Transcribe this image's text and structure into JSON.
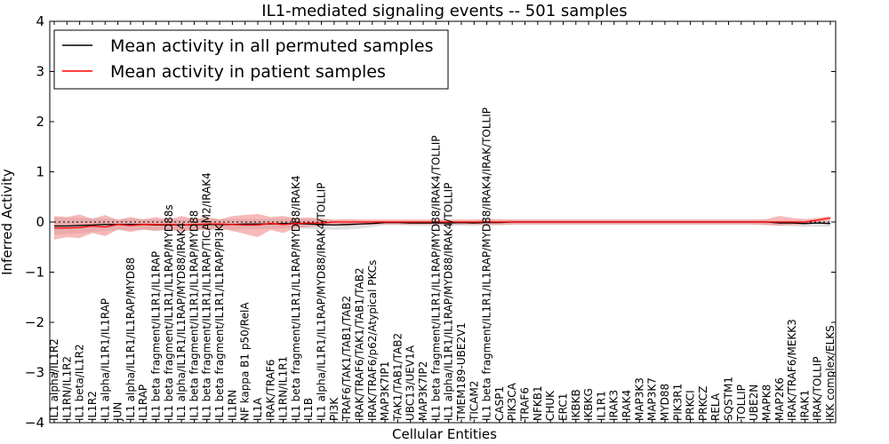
{
  "chart_data": {
    "type": "line",
    "title": "IL1-mediated signaling events -- 501 samples",
    "xlabel": "Cellular Entities",
    "ylabel": "Inferred Activity",
    "ylim": [
      -4,
      4
    ],
    "yticks": [
      -4,
      -3,
      -2,
      -1,
      0,
      1,
      2,
      3,
      4
    ],
    "ytick_labels": [
      "−4",
      "−3",
      "−2",
      "−1",
      "0",
      "1",
      "2",
      "3",
      "4"
    ],
    "legend_position": "top-left",
    "categories": [
      "IL1 alpha/IL1R2",
      "IL1RN/IL1R2",
      "IL1 beta/IL1R2",
      "IL1R2",
      "IL1 alpha/IL1R1/IL1RAP",
      "JUN",
      "IL1 alpha/IL1R1/IL1RAP/MYD88",
      "IL1RAP",
      "IL1 beta fragment/IL1R1/IL1RAP",
      "IL1 beta fragment/IL1R1/IL1RAP/MYD88s",
      "IL1 alpha/IL1R1/IL1RAP/MYD88/IRAK4",
      "IL1 beta fragment/IL1R1/IL1RAP/MYD88",
      "IL1 beta fragment/IL1R1/IL1RAP/TICAM2/IRAK4",
      "IL1 beta fragment/IL1R1/IL1RAP/PI3K",
      "IL1RN",
      "NF kappa B1 p50/RelA",
      "IL1A",
      "IRAK/TRAF6",
      "IL1RN/IL1R1",
      "IL1 beta fragment/IL1R1/IL1RAP/MYD88/IRAK4",
      "IL1B",
      "IL1 alpha/IL1R1/IL1RAP/MYD88/IRAK4/TOLLIP",
      "PI3K",
      "TRAF6/TAK1/TAB1/TAB2",
      "IRAK/TRAF6/TAK1/TAB1/TAB2",
      "IRAK/TRAF6/p62/Atypical PKCs",
      "MAP3K7IP1",
      "TAK1/TAB1/TAB2",
      "UBC13/UEV1A",
      "MAP3K7IP2",
      "IL1 beta fragment/IL1R1/IL1RAP/MYD88/IRAK4/TOLLIP",
      "IL1 alpha/IL1R1/IL1RAP/MYD88/IRAK4/TOLLIP",
      "TMEM189-UBE2V1",
      "TICAM2",
      "IL1 beta fragment/IL1R1/IL1RAP/MYD88/IRAK4/IRAK/TOLLIP",
      "CASP1",
      "PIK3CA",
      "TRAF6",
      "NFKB1",
      "CHUK",
      "ERC1",
      "IKBKB",
      "IKBKG",
      "IL1R1",
      "IRAK3",
      "IRAK4",
      "MAP3K3",
      "MAP3K7",
      "MYD88",
      "PIK3R1",
      "PRKCI",
      "PRKCZ",
      "RELA",
      "SQSTM1",
      "TOLLIP",
      "UBE2N",
      "MAPK8",
      "MAP2K6",
      "IRAK/TRAF6/MEKK3",
      "IRAK1",
      "IRAK/TOLLIP",
      "IKK complex/ELKS"
    ],
    "series": [
      {
        "name": "Mean activity in all permuted samples",
        "color": "#000000",
        "band_color": "#bbbbbb",
        "values": [
          -0.08,
          -0.08,
          -0.07,
          -0.06,
          -0.05,
          -0.05,
          -0.05,
          -0.05,
          -0.06,
          -0.06,
          -0.06,
          -0.06,
          -0.05,
          -0.05,
          -0.05,
          -0.04,
          -0.04,
          -0.04,
          -0.03,
          -0.03,
          -0.04,
          -0.05,
          -0.06,
          -0.05,
          -0.04,
          -0.03,
          -0.01,
          -0.01,
          -0.02,
          -0.02,
          -0.02,
          -0.02,
          -0.01,
          -0.02,
          -0.01,
          -0.01,
          0,
          0,
          0,
          0,
          0,
          0,
          0,
          0,
          0,
          0,
          0,
          0,
          0,
          0,
          0,
          0,
          0,
          0,
          0,
          0,
          0,
          -0.02,
          -0.02,
          -0.03,
          -0.02,
          -0.03
        ],
        "band_low": [
          -0.25,
          -0.24,
          -0.23,
          -0.2,
          -0.18,
          -0.16,
          -0.16,
          -0.16,
          -0.17,
          -0.17,
          -0.17,
          -0.17,
          -0.16,
          -0.16,
          -0.16,
          -0.15,
          -0.14,
          -0.14,
          -0.13,
          -0.13,
          -0.14,
          -0.15,
          -0.16,
          -0.15,
          -0.13,
          -0.1,
          -0.06,
          -0.06,
          -0.08,
          -0.08,
          -0.08,
          -0.08,
          -0.07,
          -0.08,
          -0.06,
          -0.06,
          -0.05,
          -0.05,
          -0.05,
          -0.05,
          -0.05,
          -0.05,
          -0.05,
          -0.05,
          -0.05,
          -0.05,
          -0.05,
          -0.05,
          -0.05,
          -0.05,
          -0.05,
          -0.05,
          -0.05,
          -0.05,
          -0.05,
          -0.05,
          -0.06,
          -0.08,
          -0.08,
          -0.1,
          -0.09,
          -0.1
        ],
        "band_high": [
          0.09,
          0.08,
          0.08,
          0.08,
          0.07,
          0.06,
          0.06,
          0.06,
          0.05,
          0.05,
          0.05,
          0.05,
          0.06,
          0.06,
          0.06,
          0.06,
          0.06,
          0.06,
          0.07,
          0.07,
          0.06,
          0.05,
          0.03,
          0.03,
          0.03,
          0.02,
          0.02,
          0.02,
          0.02,
          0.02,
          0.02,
          0.02,
          0.02,
          0.02,
          0.03,
          0.03,
          0.04,
          0.04,
          0.04,
          0.04,
          0.04,
          0.04,
          0.04,
          0.04,
          0.04,
          0.04,
          0.04,
          0.04,
          0.04,
          0.04,
          0.04,
          0.04,
          0.04,
          0.04,
          0.04,
          0.04,
          0.04,
          0.03,
          0.03,
          0.03,
          0.04,
          0.03
        ]
      },
      {
        "name": "Mean activity in patient samples",
        "color": "#ff0000",
        "band_color": "#f08080",
        "values": [
          -0.12,
          -0.12,
          -0.11,
          -0.08,
          -0.1,
          -0.05,
          -0.07,
          -0.05,
          -0.05,
          -0.05,
          -0.06,
          -0.05,
          -0.04,
          -0.04,
          -0.05,
          -0.06,
          -0.06,
          -0.03,
          -0.05,
          -0.03,
          -0.02,
          -0.02,
          0,
          0,
          0,
          0,
          0,
          0,
          0,
          0,
          0,
          0,
          0,
          0,
          0,
          0,
          0,
          0,
          0,
          0,
          0,
          0,
          0,
          0,
          0,
          0,
          0,
          0,
          0,
          0,
          0,
          0,
          0,
          0,
          0,
          0,
          0,
          0,
          0,
          0,
          0.04,
          0.08
        ],
        "band_low": [
          -0.35,
          -0.3,
          -0.32,
          -0.22,
          -0.28,
          -0.15,
          -0.2,
          -0.15,
          -0.18,
          -0.14,
          -0.2,
          -0.14,
          -0.16,
          -0.12,
          -0.18,
          -0.24,
          -0.3,
          -0.16,
          -0.22,
          -0.12,
          -0.1,
          -0.08,
          -0.06,
          -0.08,
          -0.06,
          -0.05,
          -0.05,
          -0.05,
          -0.05,
          -0.05,
          -0.05,
          -0.05,
          -0.05,
          -0.05,
          -0.06,
          -0.06,
          -0.05,
          -0.05,
          -0.05,
          -0.05,
          -0.05,
          -0.05,
          -0.05,
          -0.05,
          -0.05,
          -0.05,
          -0.05,
          -0.05,
          -0.05,
          -0.05,
          -0.05,
          -0.05,
          -0.05,
          -0.05,
          -0.05,
          -0.05,
          -0.06,
          -0.07,
          -0.06,
          -0.05,
          -0.02,
          0.02
        ],
        "band_high": [
          0.12,
          0.1,
          0.15,
          0.06,
          0.14,
          0.04,
          0.1,
          0.05,
          0.1,
          0.05,
          0.12,
          0.06,
          0.1,
          0.05,
          0.12,
          0.14,
          0.16,
          0.1,
          0.12,
          0.08,
          0.09,
          0.07,
          0.05,
          0.06,
          0.05,
          0.05,
          0.05,
          0.05,
          0.05,
          0.05,
          0.05,
          0.05,
          0.05,
          0.05,
          0.06,
          0.06,
          0.05,
          0.05,
          0.05,
          0.05,
          0.05,
          0.05,
          0.05,
          0.05,
          0.05,
          0.05,
          0.05,
          0.05,
          0.05,
          0.05,
          0.05,
          0.05,
          0.05,
          0.05,
          0.05,
          0.05,
          0.06,
          0.12,
          0.08,
          0.06,
          0.08,
          0.12
        ]
      }
    ],
    "reference_line": 0
  }
}
